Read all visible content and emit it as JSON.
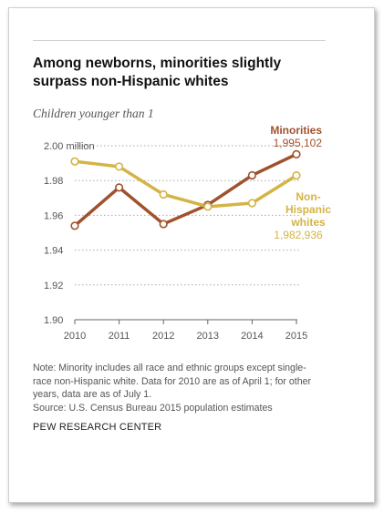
{
  "header": {
    "title": "Among newborns, minorities slightly surpass non-Hispanic whites",
    "subtitle": "Children younger than 1"
  },
  "footer": {
    "note": "Note: Minority includes all race and ethnic groups except single-race non-Hispanic white. Data for 2010 are as of April 1; for other years, data are as of July 1.",
    "source": "Source: U.S. Census Bureau 2015 population estimates",
    "org": "PEW RESEARCH CENTER"
  },
  "labels": {
    "minorities_name": "Minorities",
    "minorities_value": "1,995,102",
    "whites_name_line1": "Non-",
    "whites_name_line2": "Hispanic",
    "whites_name_line3": "whites",
    "whites_value": "1,982,936"
  },
  "colors": {
    "minorities": "#a0522d",
    "whites": "#d4b444",
    "grid": "#aaaaaa",
    "axis": "#666666"
  },
  "chart_data": {
    "type": "line",
    "title": "Among newborns, minorities slightly surpass non-Hispanic whites",
    "subtitle": "Children younger than 1",
    "x": [
      2010,
      2011,
      2012,
      2013,
      2014,
      2015
    ],
    "ylim": [
      1.9,
      2.0
    ],
    "yticks": [
      1.9,
      1.92,
      1.94,
      1.96,
      1.98,
      2.0
    ],
    "ytick_labels": [
      "1.90",
      "1.92",
      "1.94",
      "1.96",
      "1.98",
      "2.00 million"
    ],
    "xtick_labels": [
      "2010",
      "2011",
      "2012",
      "2013",
      "2014",
      "2015"
    ],
    "grid": "horizontal dotted",
    "series": [
      {
        "name": "Minorities",
        "values": [
          1.954,
          1.976,
          1.955,
          1.966,
          1.983,
          1.995102
        ],
        "color": "#a0522d"
      },
      {
        "name": "Non-Hispanic whites",
        "values": [
          1.991,
          1.988,
          1.972,
          1.965,
          1.967,
          1.982936
        ],
        "color": "#d4b444"
      }
    ],
    "annotations": [
      {
        "series": "Minorities",
        "text": "Minorities 1,995,102"
      },
      {
        "series": "Non-Hispanic whites",
        "text": "Non-Hispanic whites 1,982,936"
      }
    ]
  }
}
